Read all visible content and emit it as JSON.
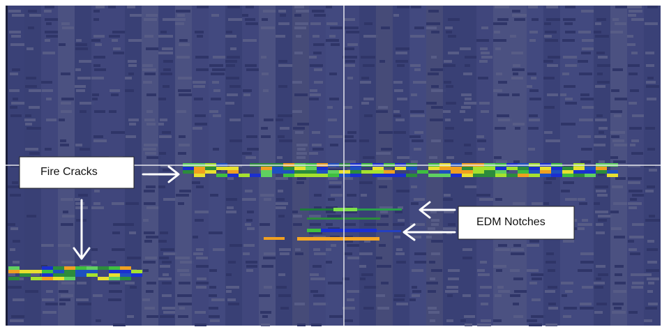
{
  "annotations": {
    "fire_cracks": "Fire Cracks",
    "edm_notches": "EDM Notches"
  }
}
